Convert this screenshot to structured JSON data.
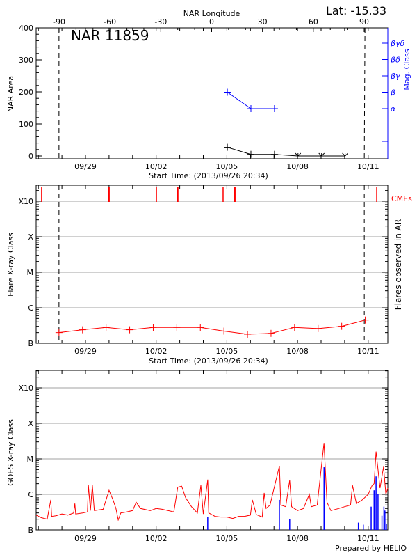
{
  "header": {
    "lat_label": "Lat: -15.33",
    "prepared_by": "Prepared by HELIO"
  },
  "colors": {
    "nar_area": "#000000",
    "mag_class": "#0000ff",
    "flares": "#ff0000",
    "cmes": "#ff0000",
    "goes_long": "#ff0000",
    "goes_short": "#0000ff",
    "grid": "#a0a0a0"
  },
  "chart_data": [
    {
      "type": "line",
      "title": "NAR 11859",
      "xlabel": "Start Time: (2013/09/26 20:34)",
      "ylabel": "NAR Area",
      "y2label": "Mag. Class",
      "top_xlabel": "NAR Longitude",
      "xlim": [
        "2013-09-26 20:34",
        "2013-10-11 20:34"
      ],
      "ylim": [
        -9,
        400
      ],
      "x_tick_labels": [
        {
          "date": "2013-09-29 00:00",
          "label": "09/29"
        },
        {
          "date": "2013-10-02 00:00",
          "label": "10/02"
        },
        {
          "date": "2013-10-05 00:00",
          "label": "10/05"
        },
        {
          "date": "2013-10-08 00:00",
          "label": "10/08"
        },
        {
          "date": "2013-10-11 00:00",
          "label": "10/11"
        }
      ],
      "y_tick_labels": [
        "0",
        "100",
        "200",
        "300",
        "400"
      ],
      "y_ticks": [
        0,
        100,
        200,
        300,
        400
      ],
      "longitude_ticks": [
        {
          "value": -90,
          "label": "-90"
        },
        {
          "value": -60,
          "label": "-60"
        },
        {
          "value": -30,
          "label": "-30"
        },
        {
          "value": 0,
          "label": "0"
        },
        {
          "value": 30,
          "label": "30"
        },
        {
          "value": 60,
          "label": "60"
        },
        {
          "value": 90,
          "label": "90"
        }
      ],
      "longitude_limb_dates": [
        "2013-09-27 21:00",
        "2013-10-10 20:00"
      ],
      "mag_classes": [
        "α",
        "β",
        "βγ",
        "βδ",
        "βγδ"
      ],
      "series": [
        {
          "name": "NAR Area",
          "points": [
            [
              "2013-10-05 00:30",
              27
            ],
            [
              "2013-10-06 00:30",
              5
            ],
            [
              "2013-10-07 00:30",
              5
            ],
            [
              "2013-10-08 00:30",
              0
            ],
            [
              "2013-10-09 00:30",
              0
            ],
            [
              "2013-10-10 00:30",
              0
            ]
          ]
        },
        {
          "name": "Mag. Class",
          "points": [
            [
              "2013-10-05 00:30",
              "β"
            ],
            [
              "2013-10-06 00:30",
              "α"
            ],
            [
              "2013-10-07 00:30",
              "α"
            ]
          ]
        }
      ]
    },
    {
      "type": "line",
      "xlabel": "Start Time: (2013/09/26 20:34)",
      "ylabel": "Flare X-ray Class",
      "y2label": "Flares observed in AR",
      "cme_label": "CMEs",
      "scale": "log",
      "xlim": [
        "2013-09-26 20:34",
        "2013-10-11 20:34"
      ],
      "y_tick_labels": [
        "B",
        "C",
        "M",
        "X",
        "X10"
      ],
      "grid": true,
      "limb_dates": [
        "2013-09-27 21:00",
        "2013-10-10 20:00"
      ],
      "series": [
        {
          "points": [
            [
              "2013-09-27 21:00",
              "B2.0"
            ],
            [
              "2013-09-28 21:00",
              "B2.4"
            ],
            [
              "2013-09-29 21:00",
              "B2.8"
            ],
            [
              "2013-09-30 21:00",
              "B2.4"
            ],
            [
              "2013-10-01 21:00",
              "B2.8"
            ],
            [
              "2013-10-02 21:00",
              "B2.8"
            ],
            [
              "2013-10-03 21:00",
              "B2.8"
            ],
            [
              "2013-10-04 21:00",
              "B2.2"
            ],
            [
              "2013-10-05 21:00",
              "B1.8"
            ],
            [
              "2013-10-06 21:00",
              "B1.9"
            ],
            [
              "2013-10-07 21:00",
              "B2.8"
            ],
            [
              "2013-10-08 21:00",
              "B2.6"
            ],
            [
              "2013-10-09 21:00",
              "B3.0"
            ],
            [
              "2013-10-10 21:00",
              "B4.5"
            ]
          ]
        }
      ],
      "cmes": [
        "2013-09-27 03:20",
        "2013-09-30 00:00",
        "2013-10-02 00:15",
        "2013-10-02 22:00",
        "2013-10-04 20:10",
        "2013-10-05 08:10",
        "2013-10-11 08:40"
      ]
    },
    {
      "type": "line",
      "ylabel": "GOES X-ray Class",
      "scale": "log",
      "xlim": [
        "2013-09-26 20:34",
        "2013-10-11 20:34"
      ],
      "y_tick_labels": [
        "B",
        "C",
        "M",
        "X",
        "X10"
      ],
      "grid": true,
      "series": [
        {
          "points": [
            [
              "2013-09-26 21:00",
              "B2.6"
            ],
            [
              "2013-09-27 03:00",
              "B2.2"
            ],
            [
              "2013-09-27 09:00",
              "B2.0"
            ],
            [
              "2013-09-27 12:40",
              "B7.0"
            ],
            [
              "2013-09-27 13:30",
              "B2.4"
            ],
            [
              "2013-09-27 18:00",
              "B2.5"
            ],
            [
              "2013-09-28 00:00",
              "B2.8"
            ],
            [
              "2013-09-28 06:00",
              "B2.6"
            ],
            [
              "2013-09-28 12:00",
              "B3.0"
            ],
            [
              "2013-09-28 13:10",
              "B5.5"
            ],
            [
              "2013-09-28 14:00",
              "B2.8"
            ],
            [
              "2013-09-28 21:00",
              "B3.0"
            ],
            [
              "2013-09-29 02:00",
              "B3.2"
            ],
            [
              "2013-09-29 03:00",
              "C1.8"
            ],
            [
              "2013-09-29 05:00",
              "B3.5"
            ],
            [
              "2013-09-29 07:00",
              "C1.8"
            ],
            [
              "2013-09-29 09:00",
              "B3.5"
            ],
            [
              "2013-09-29 18:00",
              "B3.8"
            ],
            [
              "2013-09-30 00:00",
              "C1.3"
            ],
            [
              "2013-09-30 04:00",
              "B7.0"
            ],
            [
              "2013-09-30 07:00",
              "B4.0"
            ],
            [
              "2013-09-30 09:20",
              "B1.9"
            ],
            [
              "2013-09-30 12:00",
              "B3.0"
            ],
            [
              "2013-09-30 18:00",
              "B3.2"
            ],
            [
              "2013-10-01 00:00",
              "B3.5"
            ],
            [
              "2013-10-01 03:40",
              "B6.0"
            ],
            [
              "2013-10-01 08:00",
              "B4.0"
            ],
            [
              "2013-10-01 18:00",
              "B3.5"
            ],
            [
              "2013-10-02 00:00",
              "B4.0"
            ],
            [
              "2013-10-02 06:00",
              "B3.8"
            ],
            [
              "2013-10-02 12:00",
              "B3.5"
            ],
            [
              "2013-10-02 18:00",
              "B3.2"
            ],
            [
              "2013-10-02 22:00",
              "C1.6"
            ],
            [
              "2013-10-03 02:00",
              "C1.7"
            ],
            [
              "2013-10-03 06:00",
              "B8.0"
            ],
            [
              "2013-10-03 12:00",
              "B4.5"
            ],
            [
              "2013-10-03 18:00",
              "B3.0"
            ],
            [
              "2013-10-03 21:30",
              "C1.8"
            ],
            [
              "2013-10-04 00:00",
              "B2.8"
            ],
            [
              "2013-10-04 04:30",
              "C2.6"
            ],
            [
              "2013-10-04 05:30",
              "B3.0"
            ],
            [
              "2013-10-04 12:00",
              "B2.4"
            ],
            [
              "2013-10-04 18:00",
              "B2.3"
            ],
            [
              "2013-10-05 00:00",
              "B2.3"
            ],
            [
              "2013-10-05 06:00",
              "B2.1"
            ],
            [
              "2013-10-05 12:00",
              "B2.4"
            ],
            [
              "2013-10-05 18:00",
              "B2.4"
            ],
            [
              "2013-10-06 00:00",
              "B2.6"
            ],
            [
              "2013-10-06 02:00",
              "B7.0"
            ],
            [
              "2013-10-06 06:00",
              "B2.7"
            ],
            [
              "2013-10-06 12:00",
              "B2.3"
            ],
            [
              "2013-10-06 14:00",
              "C1.1"
            ],
            [
              "2013-10-06 16:00",
              "B4.0"
            ],
            [
              "2013-10-06 20:00",
              "B5.0"
            ],
            [
              "2013-10-07 05:30",
              "C6.3"
            ],
            [
              "2013-10-07 07:00",
              "B5.0"
            ],
            [
              "2013-10-07 12:00",
              "B4.5"
            ],
            [
              "2013-10-07 16:00",
              "C2.5"
            ],
            [
              "2013-10-07 18:00",
              "B4.5"
            ],
            [
              "2013-10-08 00:00",
              "B3.5"
            ],
            [
              "2013-10-08 06:00",
              "B4.0"
            ],
            [
              "2013-10-08 12:00",
              "C1.0"
            ],
            [
              "2013-10-08 14:00",
              "B4.5"
            ],
            [
              "2013-10-08 20:00",
              "B5.0"
            ],
            [
              "2013-10-09 03:00",
              "M2.8"
            ],
            [
              "2013-10-09 06:00",
              "B6.0"
            ],
            [
              "2013-10-09 10:00",
              "B3.5"
            ],
            [
              "2013-10-09 18:00",
              "B4.0"
            ],
            [
              "2013-10-10 00:00",
              "B4.5"
            ],
            [
              "2013-10-10 06:00",
              "B5.0"
            ],
            [
              "2013-10-10 08:00",
              "C1.8"
            ],
            [
              "2013-10-10 12:00",
              "B5.5"
            ],
            [
              "2013-10-10 18:00",
              "B7.0"
            ],
            [
              "2013-10-11 00:00",
              "C1.0"
            ],
            [
              "2013-10-11 04:00",
              "C1.8"
            ],
            [
              "2013-10-11 06:00",
              "C2.0"
            ],
            [
              "2013-10-11 08:00",
              "M1.6"
            ],
            [
              "2013-10-11 12:00",
              "C1.5"
            ],
            [
              "2013-10-11 15:40",
              "C6.0"
            ],
            [
              "2013-10-11 18:00",
              "C1.0"
            ],
            [
              "2013-10-11 20:30",
              "C1.5"
            ]
          ]
        },
        {
          "points": [
            [
              "2013-10-04 04:30",
              "B2.3"
            ],
            [
              "2013-10-07 05:30",
              "B7.0"
            ],
            [
              "2013-10-07 16:00",
              "B2.0"
            ],
            [
              "2013-10-09 03:00",
              "C5.8"
            ],
            [
              "2013-10-10 14:00",
              "B1.6"
            ],
            [
              "2013-10-10 19:00",
              "B1.4"
            ],
            [
              "2013-10-11 03:00",
              "B4.5"
            ],
            [
              "2013-10-11 06:00",
              "C1.3"
            ],
            [
              "2013-10-11 08:00",
              "C3.2"
            ],
            [
              "2013-10-11 10:00",
              "C1.0"
            ],
            [
              "2013-10-11 14:00",
              "B2.5"
            ],
            [
              "2013-10-11 16:00",
              "B4.5"
            ],
            [
              "2013-10-11 17:00",
              "B3.5"
            ],
            [
              "2013-10-11 18:30",
              "B1.5"
            ]
          ]
        }
      ]
    }
  ]
}
